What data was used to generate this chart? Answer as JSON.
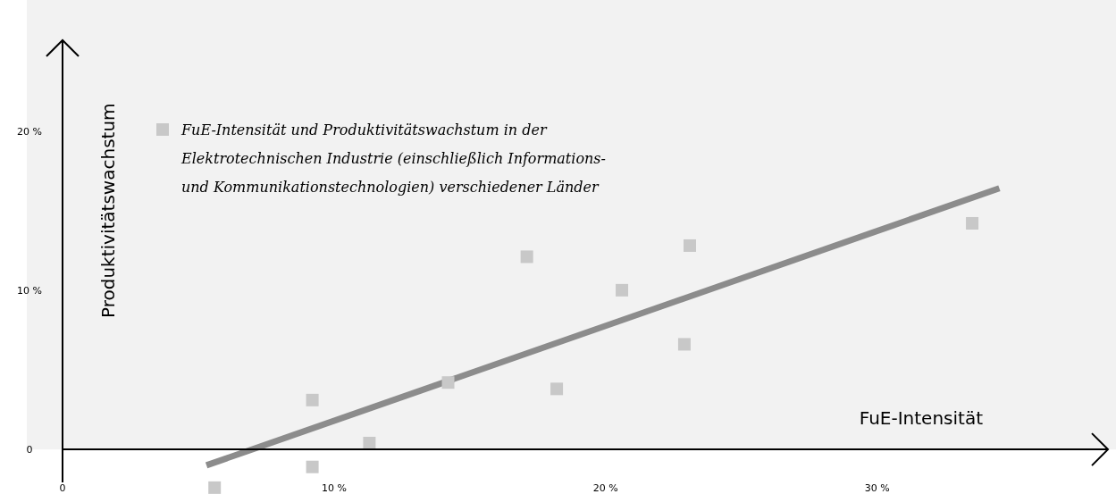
{
  "chart_data": {
    "type": "scatter",
    "xlabel": "FuE-Intensität",
    "ylabel": "Produktivitätswachstum",
    "xlim": [
      0,
      38.5
    ],
    "ylim": [
      -2.8,
      25.7
    ],
    "xticks": [
      0,
      {
        "value": 10,
        "label": "10 %"
      },
      {
        "value": 20,
        "label": "20 %"
      },
      {
        "value": 30,
        "label": "30 %"
      }
    ],
    "yticks": [
      0,
      {
        "value": 10,
        "label": "10 %"
      },
      {
        "value": 20,
        "label": "20 %"
      }
    ],
    "grid": false,
    "ref_lines": [
      {
        "axis": "y",
        "value": 0,
        "color": "#000000"
      }
    ],
    "legend": "top left",
    "marker": "square",
    "series": [
      {
        "name": "FuE-Intensität und Produktivitätswachstum in der Elektrotechnischen Industrie (einschließlich Informations- und Kommunikationstechnologien) verschiedener Länder",
        "color": "#c8c8c8",
        "x": [
          5.6,
          9.2,
          9.2,
          11.3,
          14.2,
          17.1,
          18.2,
          20.6,
          22.9,
          23.1,
          33.5
        ],
        "values": [
          -2.4,
          3.1,
          -1.1,
          0.4,
          4.2,
          12.1,
          3.8,
          10.0,
          6.6,
          12.8,
          14.2
        ]
      },
      {
        "type": "line",
        "marker": "none",
        "color": "#8c8c8c",
        "x": [
          5.3,
          34.5
        ],
        "values": [
          -1.0,
          16.4
        ]
      }
    ]
  }
}
